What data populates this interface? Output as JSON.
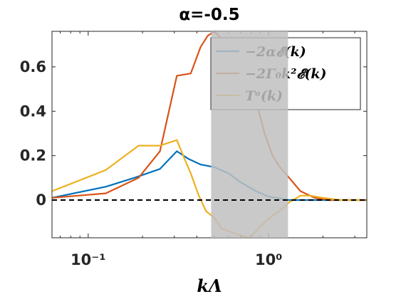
{
  "chart_data": {
    "type": "line",
    "title": "α=-0.5",
    "xlabel": "kΛ",
    "ylabel": "",
    "xscale": "log",
    "xlim": [
      0.063,
      3.5
    ],
    "ylim": [
      -0.17,
      0.76
    ],
    "xticks": [
      {
        "value": 0.1,
        "label": "10⁻¹"
      },
      {
        "value": 1.0,
        "label": "10⁰"
      }
    ],
    "yticks": [
      {
        "value": 0,
        "label": "0"
      },
      {
        "value": 0.2,
        "label": "0.2"
      },
      {
        "value": 0.4,
        "label": "0.4"
      },
      {
        "value": 0.6,
        "label": "0.6"
      }
    ],
    "shaded_region": {
      "x0": 0.48,
      "x1": 1.28,
      "color": "#bfbfbf"
    },
    "zero_line": {
      "y": 0,
      "style": "dashed",
      "color": "#000000"
    },
    "legend_position": "top-right",
    "series": [
      {
        "name": "−2α𝓔(k)",
        "color": "#0072BD",
        "x": [
          0.063,
          0.125,
          0.18,
          0.25,
          0.31,
          0.36,
          0.42,
          0.5,
          0.6,
          0.7,
          0.85,
          1.0,
          1.3,
          1.6,
          2.0,
          3.5
        ],
        "y": [
          0.01,
          0.06,
          0.1,
          0.14,
          0.22,
          0.185,
          0.16,
          0.148,
          0.12,
          0.08,
          0.04,
          0.015,
          0.0,
          0.0,
          0.0,
          0.0
        ]
      },
      {
        "name": "−2Γ₀k²𝓔(k)",
        "color": "#D95319",
        "x": [
          0.063,
          0.125,
          0.19,
          0.25,
          0.31,
          0.37,
          0.42,
          0.46,
          0.5,
          0.56,
          0.65,
          0.75,
          0.85,
          0.95,
          1.05,
          1.15,
          1.3,
          1.5,
          1.8,
          2.2,
          3.5
        ],
        "y": [
          0.01,
          0.03,
          0.1,
          0.22,
          0.56,
          0.57,
          0.69,
          0.74,
          0.76,
          0.72,
          0.68,
          0.6,
          0.45,
          0.3,
          0.2,
          0.15,
          0.1,
          0.04,
          0.01,
          0.0,
          0.0
        ]
      },
      {
        "name": "Tᵃ(k)",
        "color": "#EDB120",
        "x": [
          0.063,
          0.125,
          0.19,
          0.25,
          0.31,
          0.34,
          0.37,
          0.41,
          0.45,
          0.5,
          0.55,
          0.6,
          0.7,
          0.78,
          0.85,
          0.95,
          1.05,
          1.15,
          1.3,
          1.5,
          1.7,
          2.0,
          2.5,
          3.5
        ],
        "y": [
          0.04,
          0.135,
          0.245,
          0.245,
          0.27,
          0.19,
          0.12,
          0.02,
          -0.05,
          -0.08,
          -0.13,
          -0.14,
          -0.16,
          -0.17,
          -0.14,
          -0.1,
          -0.07,
          -0.05,
          -0.01,
          0.02,
          0.02,
          0.01,
          0.0,
          0.0
        ]
      }
    ]
  }
}
